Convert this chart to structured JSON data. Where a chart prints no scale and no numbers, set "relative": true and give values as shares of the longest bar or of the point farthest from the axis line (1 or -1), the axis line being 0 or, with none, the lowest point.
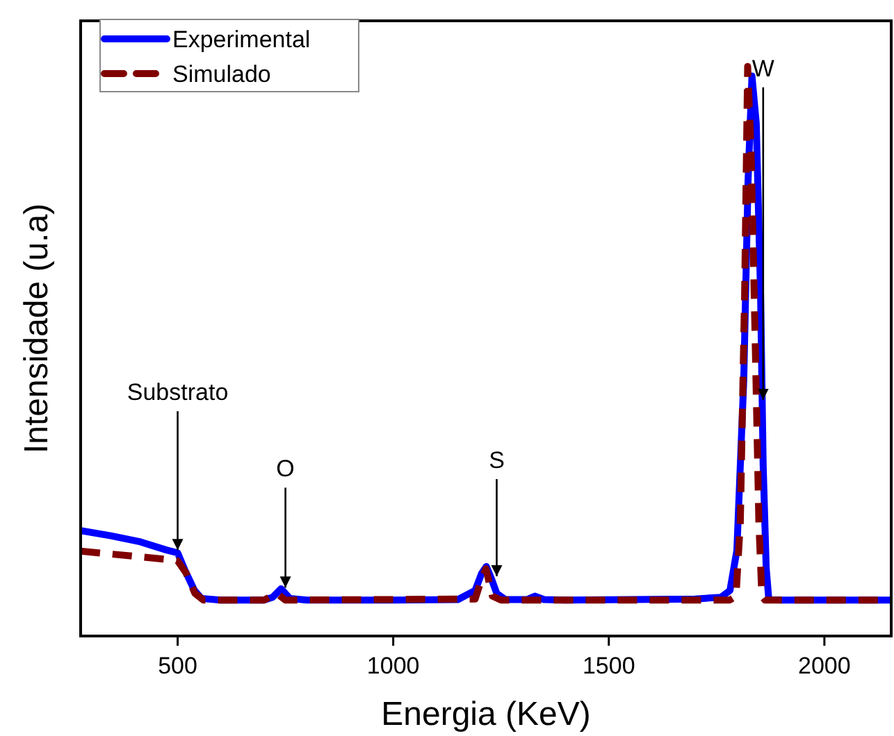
{
  "chart_data": {
    "type": "line",
    "xlabel": "Energia (KeV)",
    "ylabel": "Intensidade (u.a)",
    "relative": true,
    "xlim": [
      275,
      2155
    ],
    "xticks": [
      500,
      1000,
      1500,
      2000
    ],
    "legend": "top left",
    "grid": false,
    "series": [
      {
        "name": "Experimental",
        "color": "#0000ff",
        "line_style": "solid",
        "x": [
          275,
          345,
          410,
          474,
          500,
          516,
          539,
          555,
          600,
          700,
          720,
          740,
          760,
          800,
          1000,
          1150,
          1190,
          1205,
          1216,
          1228,
          1240,
          1260,
          1310,
          1329,
          1350,
          1400,
          1700,
          1760,
          1781,
          1797,
          1813,
          1823,
          1832,
          1842,
          1852,
          1858,
          1865,
          1871,
          1900,
          2155
        ],
        "values": [
          0.185,
          0.176,
          0.166,
          0.151,
          0.146,
          0.117,
          0.08,
          0.066,
          0.063,
          0.063,
          0.068,
          0.083,
          0.066,
          0.063,
          0.063,
          0.064,
          0.08,
          0.11,
          0.122,
          0.1,
          0.075,
          0.064,
          0.064,
          0.07,
          0.064,
          0.063,
          0.065,
          0.068,
          0.08,
          0.15,
          0.45,
          0.8,
          0.983,
          0.9,
          0.6,
          0.3,
          0.12,
          0.065,
          0.063,
          0.063
        ]
      },
      {
        "name": "Simulado",
        "color": "#800000",
        "line_style": "dashed",
        "x": [
          275,
          400,
          480,
          500,
          520,
          540,
          560,
          700,
          730,
          750,
          1190,
          1205,
          1215,
          1230,
          1250,
          1780,
          1795,
          1805,
          1815,
          1822,
          1830,
          1840,
          1848,
          1855,
          1862,
          2155
        ],
        "values": [
          0.149,
          0.14,
          0.134,
          0.132,
          0.11,
          0.075,
          0.063,
          0.063,
          0.075,
          0.063,
          0.065,
          0.1,
          0.118,
          0.07,
          0.063,
          0.063,
          0.07,
          0.2,
          0.6,
          1.0,
          0.85,
          0.5,
          0.2,
          0.07,
          0.063,
          0.063
        ]
      }
    ],
    "annotations": [
      {
        "text": "Substrato",
        "x": 500,
        "y": 0.146
      },
      {
        "text": "O",
        "x": 750,
        "y": 0.08
      },
      {
        "text": "S",
        "x": 1240,
        "y": 0.1
      },
      {
        "text": "W",
        "x": 1858,
        "y": 0.41
      }
    ]
  }
}
